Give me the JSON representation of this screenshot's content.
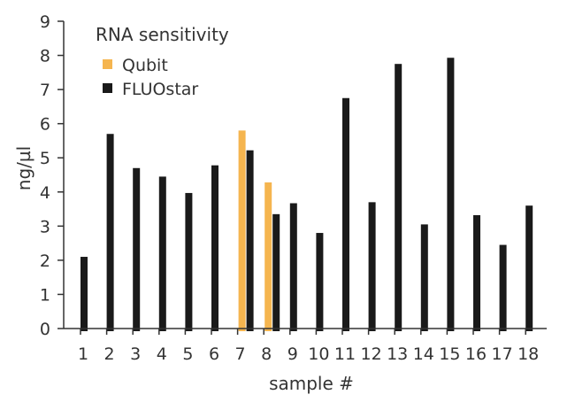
{
  "chart_data": {
    "type": "bar",
    "title": "RNA sensitivity",
    "xlabel": "sample #",
    "ylabel": "ng/µl",
    "ylim": [
      0,
      9
    ],
    "yticks": [
      "0",
      "1",
      "2",
      "3",
      "4",
      "5",
      "6",
      "7",
      "8",
      "9"
    ],
    "categories": [
      "1",
      "2",
      "3",
      "4",
      "5",
      "6",
      "7",
      "8",
      "9",
      "10",
      "11",
      "12",
      "13",
      "14",
      "15",
      "16",
      "17",
      "18"
    ],
    "grid": false,
    "legend_position": "top-left",
    "series": [
      {
        "name": "Qubit",
        "color": "#f5b54f",
        "values": [
          null,
          null,
          null,
          null,
          null,
          null,
          5.8,
          4.28,
          null,
          null,
          null,
          null,
          null,
          null,
          null,
          null,
          null,
          null
        ]
      },
      {
        "name": "FLUOstar",
        "color": "#1a1a1a",
        "values": [
          2.1,
          5.7,
          4.7,
          4.45,
          3.97,
          4.78,
          5.22,
          3.35,
          3.67,
          2.8,
          6.75,
          3.7,
          7.75,
          3.05,
          7.93,
          3.32,
          2.45,
          3.6
        ]
      }
    ]
  }
}
